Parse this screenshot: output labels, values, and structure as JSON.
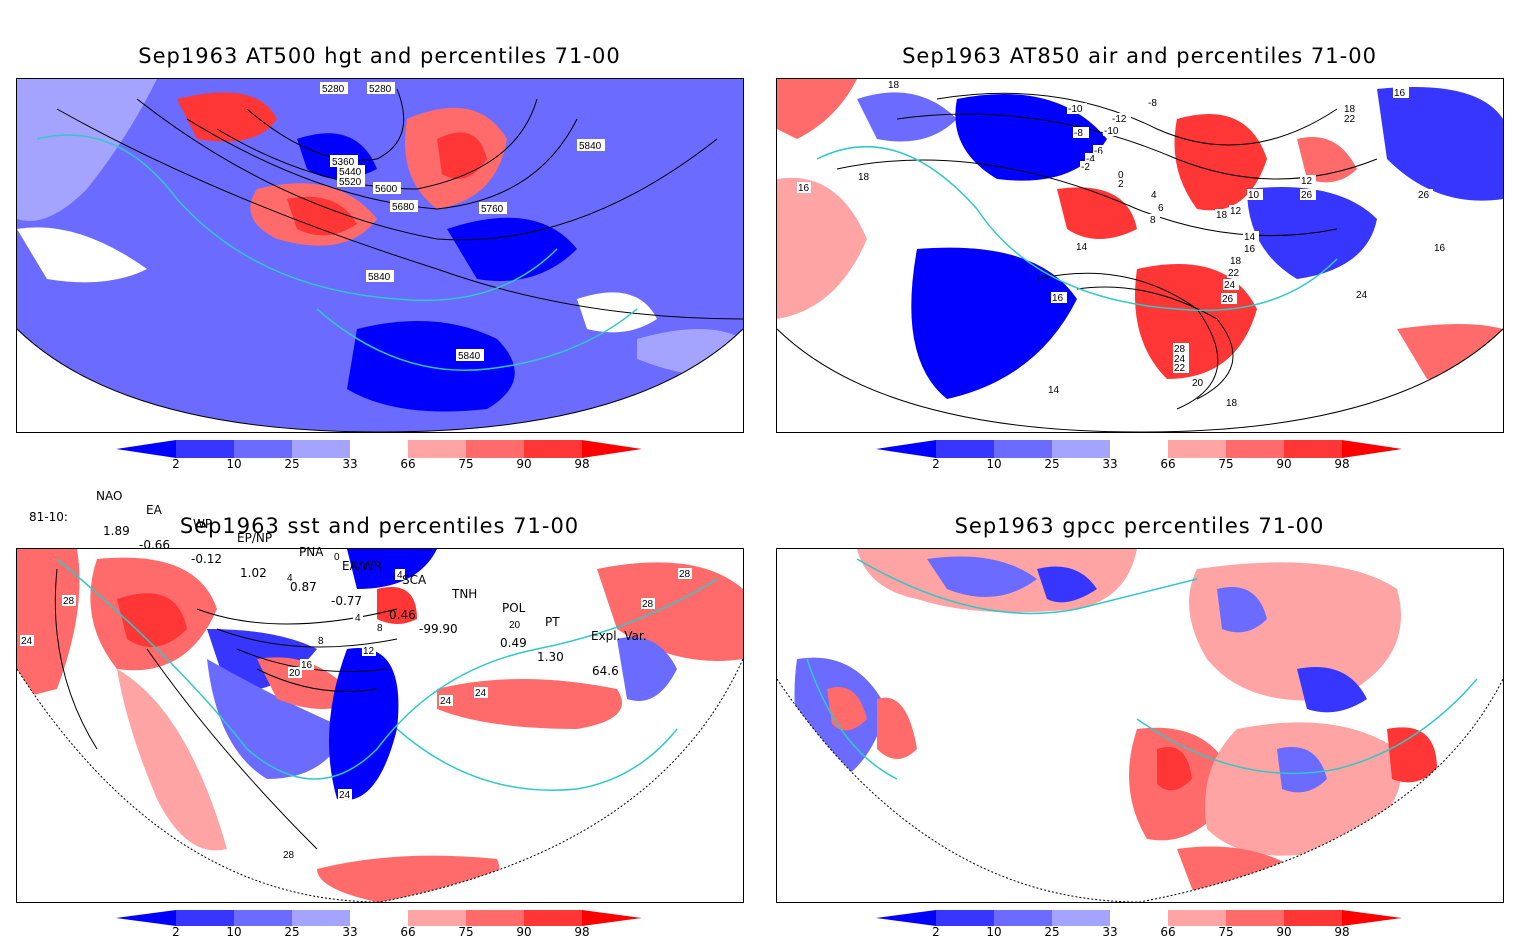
{
  "panels": {
    "top_left": {
      "title": "Sep1963 AT500 hgt and percentiles 71-00",
      "contour_labels": [
        "5280",
        "5280",
        "5360",
        "5440",
        "5520",
        "5600",
        "5680",
        "5760",
        "5840",
        "5840",
        "5840"
      ]
    },
    "top_right": {
      "title": "Sep1963 AT850 air and percentiles 71-00",
      "contour_labels": [
        "18",
        "16",
        "-10",
        "-12",
        "-8",
        "-10",
        "-8",
        "-6",
        "-4",
        "-2",
        "0",
        "2",
        "4",
        "6",
        "8",
        "10",
        "12",
        "14",
        "16",
        "18",
        "22",
        "24",
        "26",
        "28",
        "24",
        "22",
        "20",
        "18",
        "16",
        "14",
        "14",
        "12",
        "26",
        "26",
        "16",
        "16",
        "18",
        "22",
        "24",
        "18",
        "18"
      ]
    },
    "bottom_left": {
      "title": "Sep1963 sst and percentiles 71-00",
      "contour_labels": [
        "28",
        "24",
        "0",
        "4",
        "4",
        "8",
        "12",
        "16",
        "20",
        "24",
        "24",
        "20",
        "28",
        "28",
        "24",
        "28",
        "4",
        "8"
      ]
    },
    "bottom_right": {
      "title": "Sep1963 gpcc percentiles 71-00",
      "contour_labels": []
    }
  },
  "colorbar": {
    "labels": [
      "2",
      "10",
      "25",
      "33",
      "66",
      "75",
      "90",
      "98"
    ],
    "colors": [
      "#0000ff",
      "#3636ff",
      "#6b6bff",
      "#a4a4ff",
      "#ffffff",
      "#ffa4a4",
      "#ff6b6b",
      "#ff3636",
      "#ff0000"
    ]
  },
  "indices": {
    "headers": [
      "NAO",
      "EA",
      "WP",
      "EP/NP",
      "PNA",
      "EA/WR",
      "SCA",
      "TNH",
      "POL",
      "PT",
      "Expl. Var."
    ],
    "row_label": "81-10:",
    "values": [
      "1.89",
      "-0.66",
      "-0.12",
      "1.02",
      "0.87",
      "-0.77",
      "0.46",
      "-99.90",
      "0.49",
      "1.30",
      "64.6"
    ]
  },
  "palette": {
    "blue_strong": "#1a1aff",
    "blue_mid": "#5a5aff",
    "blue_light": "#a0a0ff",
    "red_light": "#ffa0a0",
    "red_mid": "#ff6060",
    "red_strong": "#ff2020",
    "coast": "#30c8c8"
  }
}
